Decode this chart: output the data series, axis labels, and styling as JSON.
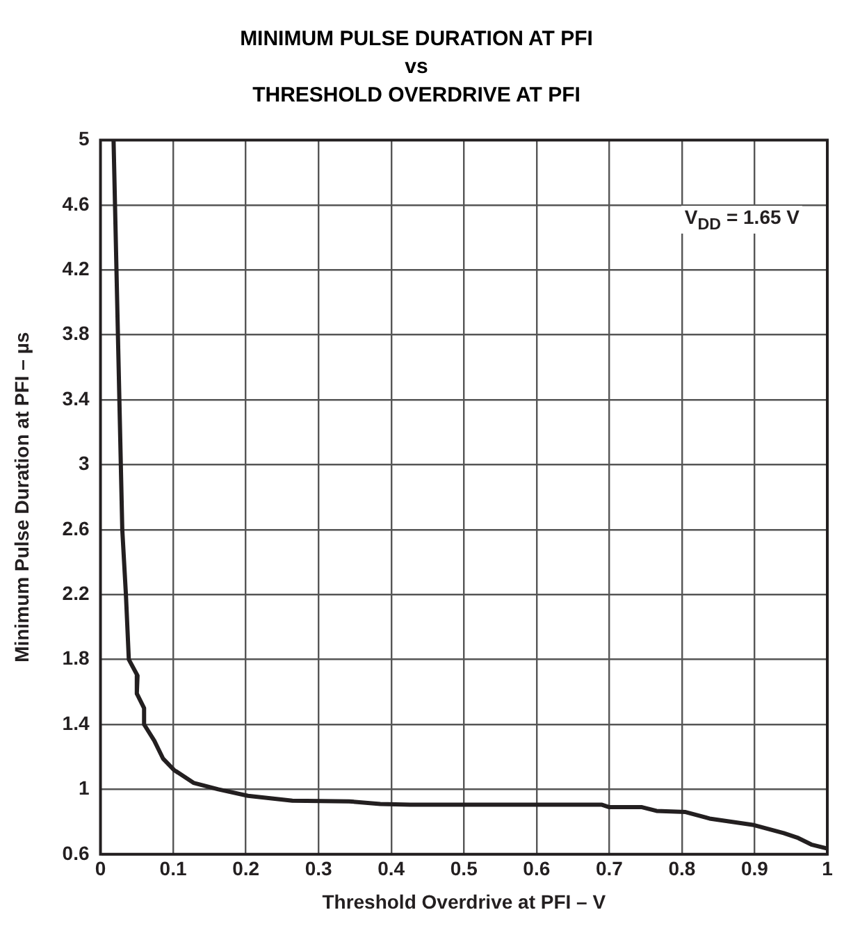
{
  "chart_data": {
    "type": "line",
    "title": "MINIMUM PULSE DURATION AT PFI\nvs\nTHRESHOLD OVERDRIVE AT PFI",
    "xlabel": "Threshold Overdrive at PFI – V",
    "ylabel": "Minimum Pulse Duration at PFI – µs",
    "annotations": [
      "V$_{DD}$ = 1.65 V"
    ],
    "xlim": [
      0,
      1
    ],
    "xticks": [
      0,
      0.1,
      0.2,
      0.3,
      0.4,
      0.5,
      0.6,
      0.7,
      0.8,
      0.9,
      1
    ],
    "ylim": [
      0.6,
      5
    ],
    "yticks": [
      0.6,
      1,
      1.4,
      1.8,
      2.2,
      2.6,
      3,
      3.4,
      3.8,
      4.2,
      4.6,
      5
    ],
    "grid": true,
    "legend": false,
    "marker": "none",
    "line_style": "solid",
    "series": [
      {
        "color": "#231f20",
        "x": [
          0.018,
          0.02,
          0.026,
          0.03,
          0.035,
          0.039,
          0.051,
          0.05,
          0.06,
          0.06,
          0.074,
          0.086,
          0.101,
          0.128,
          0.162,
          0.203,
          0.264,
          0.342,
          0.385,
          0.426,
          0.69,
          0.7,
          0.745,
          0.765,
          0.805,
          0.838,
          0.899,
          0.94,
          0.96,
          0.978,
          1
        ],
        "values": [
          5,
          4.6,
          3.4,
          2.6,
          2.2,
          1.8,
          1.7,
          1.59,
          1.5,
          1.4,
          1.3,
          1.19,
          1.12,
          1.04,
          1,
          0.96,
          0.93,
          0.926,
          0.91,
          0.905,
          0.905,
          0.89,
          0.89,
          0.867,
          0.86,
          0.82,
          0.78,
          0.73,
          0.7,
          0.66,
          0.635
        ]
      }
    ]
  }
}
